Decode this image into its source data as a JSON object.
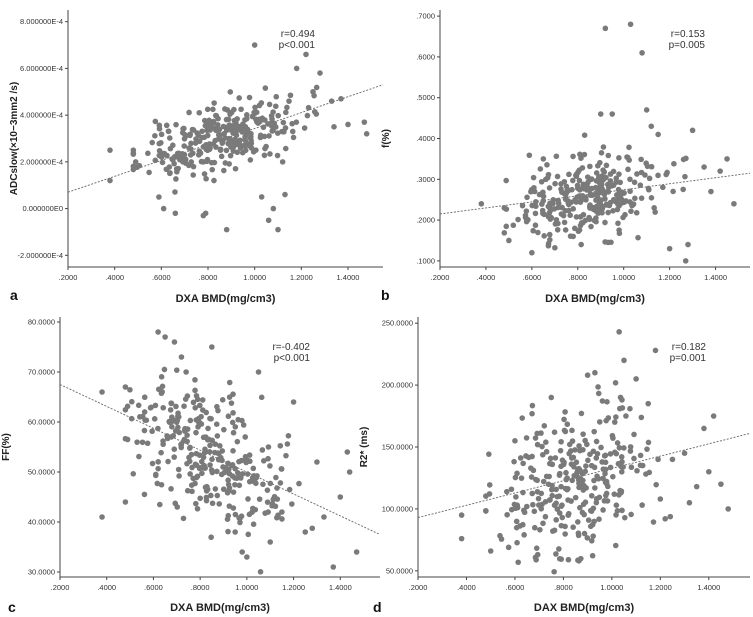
{
  "chart_data": [
    {
      "panel": "a",
      "type": "scatter",
      "xlabel": "DXA  BMD(mg/cm3)",
      "ylabel": "ADCslow(×10−3mm2 /s)",
      "xlim": [
        0.2,
        1.55
      ],
      "ylim": [
        -0.00025,
        0.00085
      ],
      "xticks": [
        0.2,
        0.4,
        0.6,
        0.8,
        1.0,
        1.2,
        1.4
      ],
      "xtick_labels": [
        ".2000",
        ".4000",
        ".6000",
        ".8000",
        "1.0000",
        "1.2000",
        "1.4000"
      ],
      "yticks": [
        -0.0002,
        0.0,
        0.0002,
        0.0004,
        0.0006,
        0.0008
      ],
      "ytick_labels": [
        "-2.000000E-4",
        "0.000000E0",
        "2.000000E-4",
        "4.000000E-4",
        "6.000000E-4",
        "8.000000E-4"
      ],
      "annotation": [
        "r=0.494",
        "p<0.001"
      ],
      "fit": {
        "x": [
          0.2,
          1.55
        ],
        "y": [
          7e-05,
          0.00053
        ]
      },
      "cloud": {
        "seed": 11,
        "n": 300,
        "slope": 0.00034,
        "intercept": 1e-05,
        "sd": 7e-05
      },
      "points": [
        [
          0.38,
          0.00025
        ],
        [
          0.38,
          0.00012
        ],
        [
          0.49,
          0.0002
        ],
        [
          0.61,
          0.0
        ],
        [
          0.66,
          -2e-05
        ],
        [
          0.78,
          -3e-05
        ],
        [
          0.79,
          -2e-05
        ],
        [
          0.88,
          -9e-05
        ],
        [
          1.0,
          0.0007
        ],
        [
          1.03,
          5e-05
        ],
        [
          1.06,
          -5e-05
        ],
        [
          1.08,
          0.0
        ],
        [
          1.1,
          -9e-05
        ],
        [
          1.12,
          0.0002
        ],
        [
          1.13,
          6e-05
        ],
        [
          1.18,
          0.0006
        ],
        [
          1.22,
          0.00066
        ],
        [
          1.28,
          0.00058
        ],
        [
          1.33,
          0.00046
        ],
        [
          1.37,
          0.00047
        ],
        [
          1.4,
          0.00036
        ],
        [
          1.47,
          0.00037
        ],
        [
          1.48,
          0.00032
        ],
        [
          1.34,
          0.00035
        ],
        [
          1.25,
          0.0005
        ]
      ]
    },
    {
      "panel": "b",
      "type": "scatter",
      "xlabel": "DXA  BMD(mg/cm3)",
      "ylabel": "f(%)",
      "xlim": [
        0.2,
        1.55
      ],
      "ylim": [
        0.085,
        0.715
      ],
      "xticks": [
        0.2,
        0.4,
        0.6,
        0.8,
        1.0,
        1.2,
        1.4
      ],
      "xtick_labels": [
        ".2000",
        ".4000",
        ".6000",
        ".8000",
        "1.0000",
        "1.2000",
        "1.4000"
      ],
      "yticks": [
        0.1,
        0.2,
        0.3,
        0.4,
        0.5,
        0.6,
        0.7
      ],
      "ytick_labels": [
        ".1000",
        ".2000",
        ".3000",
        ".4000",
        ".5000",
        ".6000",
        ".7000"
      ],
      "annotation": [
        "r=0.153",
        "p=0.005"
      ],
      "fit": {
        "x": [
          0.2,
          1.55
        ],
        "y": [
          0.215,
          0.315
        ]
      },
      "cloud": {
        "seed": 23,
        "n": 300,
        "slope": 0.07,
        "intercept": 0.2,
        "sd": 0.05
      },
      "points": [
        [
          0.38,
          0.24
        ],
        [
          0.5,
          0.15
        ],
        [
          0.6,
          0.12
        ],
        [
          0.65,
          0.35
        ],
        [
          0.78,
          0.16
        ],
        [
          0.92,
          0.67
        ],
        [
          1.03,
          0.68
        ],
        [
          1.08,
          0.61
        ],
        [
          1.1,
          0.47
        ],
        [
          1.12,
          0.43
        ],
        [
          1.15,
          0.41
        ],
        [
          1.2,
          0.13
        ],
        [
          1.27,
          0.1
        ],
        [
          1.28,
          0.14
        ],
        [
          1.3,
          0.42
        ],
        [
          1.35,
          0.33
        ],
        [
          1.38,
          0.27
        ],
        [
          1.42,
          0.32
        ],
        [
          1.45,
          0.35
        ],
        [
          1.48,
          0.24
        ],
        [
          0.9,
          0.46
        ],
        [
          0.95,
          0.46
        ]
      ]
    },
    {
      "panel": "c",
      "type": "scatter",
      "xlabel": "DXA  BMD(mg/cm3)",
      "ylabel": "FF(%)",
      "xlim": [
        0.2,
        1.57
      ],
      "ylim": [
        29,
        81
      ],
      "xticks": [
        0.2,
        0.4,
        0.6,
        0.8,
        1.0,
        1.2,
        1.4
      ],
      "xtick_labels": [
        ".2000",
        ".4000",
        ".6000",
        ".8000",
        "1.0000",
        "1.2000",
        "1.4000"
      ],
      "yticks": [
        30,
        40,
        50,
        60,
        70,
        80
      ],
      "ytick_labels": [
        "30.0000",
        "40.0000",
        "50.0000",
        "60.0000",
        "70.0000",
        "80.0000"
      ],
      "annotation": [
        "r=-0.402",
        "p<0.001"
      ],
      "fit": {
        "x": [
          0.2,
          1.57
        ],
        "y": [
          67.5,
          37.5
        ]
      },
      "cloud": {
        "seed": 37,
        "n": 300,
        "slope": -21.9,
        "intercept": 71.9,
        "sd": 7.0
      },
      "points": [
        [
          0.38,
          41
        ],
        [
          0.38,
          66
        ],
        [
          0.48,
          67
        ],
        [
          0.48,
          44
        ],
        [
          0.62,
          78
        ],
        [
          0.65,
          77
        ],
        [
          0.69,
          76
        ],
        [
          0.72,
          73
        ],
        [
          0.74,
          70
        ],
        [
          0.85,
          75
        ],
        [
          0.95,
          38
        ],
        [
          0.98,
          34
        ],
        [
          1.0,
          33
        ],
        [
          1.05,
          70
        ],
        [
          1.1,
          36
        ],
        [
          1.15,
          42
        ],
        [
          1.2,
          64
        ],
        [
          1.25,
          38
        ],
        [
          1.3,
          52
        ],
        [
          1.33,
          41
        ],
        [
          1.37,
          31
        ],
        [
          1.4,
          45
        ],
        [
          1.43,
          54
        ],
        [
          1.47,
          34
        ],
        [
          1.44,
          50
        ]
      ]
    },
    {
      "panel": "d",
      "type": "scatter",
      "xlabel": "DAX  BMD(mg/cm3)",
      "ylabel": "R2* (ms)",
      "xlim": [
        0.2,
        1.57
      ],
      "ylim": [
        45,
        255
      ],
      "xticks": [
        0.2,
        0.4,
        0.6,
        0.8,
        1.0,
        1.2,
        1.4
      ],
      "xtick_labels": [
        ".2000",
        ".4000",
        ".6000",
        ".8000",
        "1.0000",
        "1.2000",
        "1.4000"
      ],
      "yticks": [
        50,
        100,
        150,
        200,
        250
      ],
      "ytick_labels": [
        "50.0000",
        "100.0000",
        "150.0000",
        "200.0000",
        "250.0000"
      ],
      "annotation": [
        "r=0.182",
        "p=0.001"
      ],
      "fit": {
        "x": [
          0.2,
          1.57
        ],
        "y": [
          93,
          161
        ]
      },
      "cloud": {
        "seed": 53,
        "n": 300,
        "slope": 49.6,
        "intercept": 83.1,
        "sd": 30.0
      },
      "points": [
        [
          0.38,
          95
        ],
        [
          0.38,
          76
        ],
        [
          0.5,
          66
        ],
        [
          0.6,
          155
        ],
        [
          0.75,
          190
        ],
        [
          0.9,
          208
        ],
        [
          0.93,
          210
        ],
        [
          1.03,
          243
        ],
        [
          1.05,
          220
        ],
        [
          1.1,
          205
        ],
        [
          1.15,
          185
        ],
        [
          1.18,
          228
        ],
        [
          1.2,
          108
        ],
        [
          1.22,
          92
        ],
        [
          1.25,
          140
        ],
        [
          1.3,
          145
        ],
        [
          1.32,
          105
        ],
        [
          1.35,
          118
        ],
        [
          1.4,
          130
        ],
        [
          1.42,
          175
        ],
        [
          1.45,
          120
        ],
        [
          1.48,
          100
        ],
        [
          1.38,
          165
        ]
      ]
    }
  ]
}
